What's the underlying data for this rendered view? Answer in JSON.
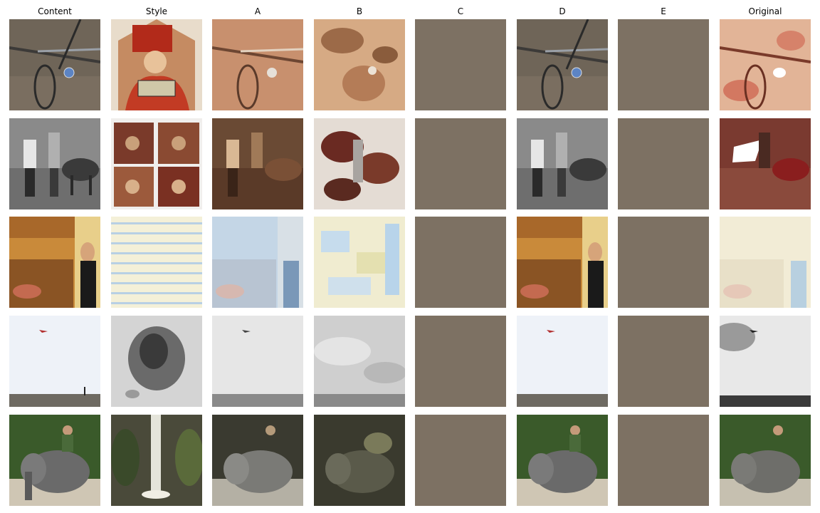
{
  "columns": [
    "Content",
    "Style",
    "A",
    "B",
    "C",
    "D",
    "E",
    "Original"
  ],
  "rows": [
    {
      "content": "bicycle on dirt ground",
      "style": "painting of saint reading a book",
      "c_color": "#7d7163",
      "e_color": "#7d7163"
    },
    {
      "content": "two people walking a cow, grayscale",
      "style": "four-panel medieval painting",
      "c_color": "#7d7163",
      "e_color": "#7d7163"
    },
    {
      "content": "woman in kitchen",
      "style": "pale horizontal stripes",
      "c_color": "#7d7163",
      "e_color": "#7d7163"
    },
    {
      "content": "kite over a hazy field",
      "style": "black and white engraving",
      "c_color": "#7d7163",
      "e_color": "#7d7163"
    },
    {
      "content": "man riding an elephant",
      "style": "waterfall painting",
      "c_color": "#7d7163",
      "e_color": "#7d7163"
    }
  ]
}
